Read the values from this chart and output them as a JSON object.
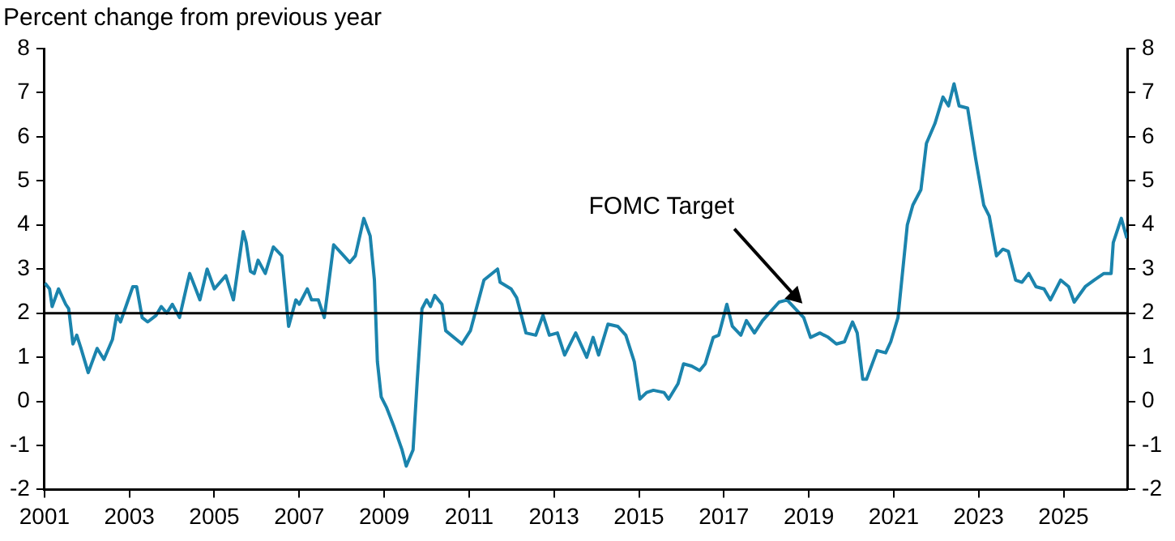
{
  "chart_data": {
    "type": "line",
    "ylabel": "Percent change from previous year",
    "x": [
      2001.01,
      2001.12,
      2001.18,
      2001.33,
      2001.5,
      2001.57,
      2001.67,
      2001.76,
      2001.86,
      2002.03,
      2002.24,
      2002.4,
      2002.6,
      2002.7,
      2002.79,
      2003.08,
      2003.17,
      2003.3,
      2003.43,
      2003.63,
      2003.75,
      2003.88,
      2004.01,
      2004.18,
      2004.37,
      2004.42,
      2004.66,
      2004.83,
      2005.0,
      2005.27,
      2005.45,
      2005.68,
      2005.75,
      2005.85,
      2005.94,
      2006.03,
      2006.2,
      2006.39,
      2006.59,
      2006.75,
      2006.92,
      2007.0,
      2007.19,
      2007.29,
      2007.45,
      2007.59,
      2007.81,
      2008.0,
      2008.19,
      2008.32,
      2008.52,
      2008.67,
      2008.77,
      2008.84,
      2008.93,
      2009.06,
      2009.22,
      2009.42,
      2009.52,
      2009.68,
      2009.78,
      2009.89,
      2010.0,
      2010.09,
      2010.19,
      2010.36,
      2010.45,
      2010.83,
      2011.03,
      2011.35,
      2011.67,
      2011.73,
      2011.99,
      2012.12,
      2012.34,
      2012.57,
      2012.74,
      2012.89,
      2013.08,
      2013.25,
      2013.51,
      2013.77,
      2013.92,
      2014.05,
      2014.27,
      2014.5,
      2014.69,
      2014.89,
      2015.02,
      2015.18,
      2015.34,
      2015.59,
      2015.7,
      2015.92,
      2016.05,
      2016.24,
      2016.43,
      2016.56,
      2016.75,
      2016.88,
      2017.07,
      2017.2,
      2017.4,
      2017.53,
      2017.72,
      2017.91,
      2018.3,
      2018.49,
      2018.68,
      2018.88,
      2019.04,
      2019.26,
      2019.46,
      2019.65,
      2019.84,
      2020.03,
      2020.14,
      2020.27,
      2020.36,
      2020.61,
      2020.81,
      2020.93,
      2021.1,
      2021.32,
      2021.45,
      2021.64,
      2021.77,
      2021.97,
      2022.16,
      2022.29,
      2022.42,
      2022.54,
      2022.74,
      2022.93,
      2023.12,
      2023.25,
      2023.42,
      2023.57,
      2023.7,
      2023.87,
      2024.02,
      2024.18,
      2024.35,
      2024.54,
      2024.69,
      2024.93,
      2025.12,
      2025.25,
      2025.51,
      2025.72,
      2025.95,
      2026.12,
      2026.17,
      2026.36,
      2026.49
    ],
    "series": [
      {
        "color": "#1b84ad",
        "values": [
          2.68,
          2.55,
          2.15,
          2.55,
          2.2,
          2.1,
          1.3,
          1.5,
          1.2,
          0.65,
          1.2,
          0.95,
          1.4,
          1.95,
          1.8,
          2.6,
          2.6,
          1.9,
          1.8,
          1.95,
          2.15,
          2.0,
          2.2,
          1.9,
          2.7,
          2.9,
          2.3,
          3.0,
          2.55,
          2.85,
          2.3,
          3.85,
          3.6,
          2.95,
          2.9,
          3.2,
          2.9,
          3.5,
          3.3,
          1.7,
          2.3,
          2.2,
          2.55,
          2.3,
          2.3,
          1.9,
          3.55,
          3.35,
          3.15,
          3.3,
          4.15,
          3.75,
          2.75,
          0.9,
          0.1,
          -0.15,
          -0.55,
          -1.1,
          -1.47,
          -1.1,
          0.5,
          2.1,
          2.3,
          2.15,
          2.4,
          2.2,
          1.6,
          1.3,
          1.6,
          2.75,
          3.0,
          2.7,
          2.55,
          2.35,
          1.55,
          1.5,
          1.95,
          1.5,
          1.55,
          1.05,
          1.55,
          1.0,
          1.45,
          1.05,
          1.75,
          1.7,
          1.5,
          0.9,
          0.05,
          0.2,
          0.25,
          0.2,
          0.05,
          0.4,
          0.85,
          0.8,
          0.7,
          0.85,
          1.45,
          1.5,
          2.2,
          1.7,
          1.5,
          1.83,
          1.55,
          1.83,
          2.25,
          2.3,
          2.1,
          1.9,
          1.45,
          1.55,
          1.45,
          1.3,
          1.35,
          1.8,
          1.55,
          0.5,
          0.5,
          1.15,
          1.1,
          1.35,
          1.9,
          4.0,
          4.45,
          4.8,
          5.85,
          6.3,
          6.9,
          6.7,
          7.2,
          6.7,
          6.65,
          5.5,
          4.45,
          4.2,
          3.3,
          3.45,
          3.4,
          2.75,
          2.7,
          2.9,
          2.6,
          2.55,
          2.3,
          2.75,
          2.6,
          2.25,
          2.6,
          2.75,
          2.9,
          2.9,
          3.6,
          4.15,
          3.7
        ]
      }
    ],
    "xlim": [
      2001,
      2026.5
    ],
    "xticks": [
      2001,
      2003,
      2005,
      2007,
      2009,
      2011,
      2013,
      2015,
      2017,
      2019,
      2021,
      2023,
      2025
    ],
    "ylim": [
      -2,
      8
    ],
    "yticks": [
      -2,
      -1,
      0,
      1,
      2,
      3,
      4,
      5,
      6,
      7,
      8
    ],
    "y2lim": [
      -2,
      8
    ],
    "y2ticks": [
      -2,
      -1,
      0,
      1,
      2,
      3,
      4,
      5,
      6,
      7,
      8
    ],
    "ref_lines": [
      {
        "axis": "y",
        "value": 2,
        "color": "#000000",
        "label": "FOMC Target"
      }
    ],
    "marker": "none",
    "line_style": "solid"
  }
}
